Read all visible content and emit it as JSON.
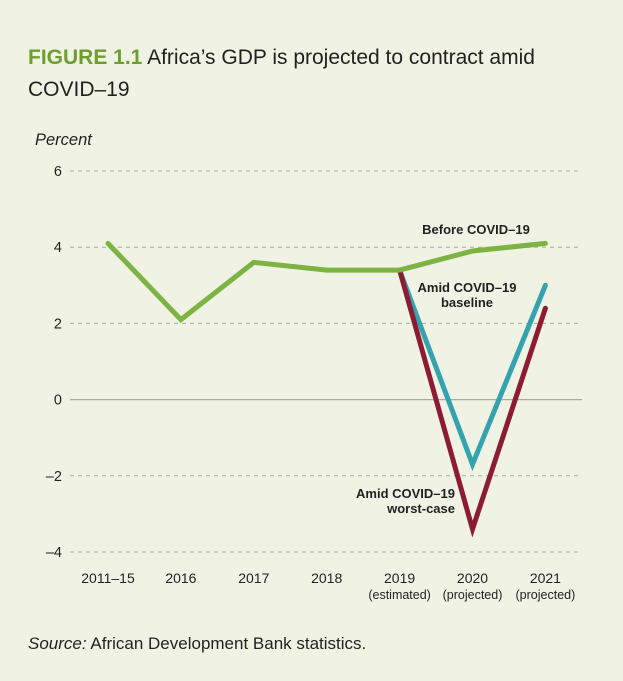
{
  "figure": {
    "label": "FIGURE 1.1",
    "title": "Africa’s GDP is projected to contract amid COVID–19",
    "title_line1": "Africa’s GDP is projected to contract amid",
    "title_line2": "COVID–19"
  },
  "source": {
    "label": "Source:",
    "text": "African Development Bank statistics."
  },
  "chart_data": {
    "type": "line",
    "title": "Africa’s GDP is projected to contract amid COVID–19",
    "xlabel": "",
    "ylabel": "Percent",
    "ylim": [
      -4,
      6
    ],
    "yticks": [
      6,
      4,
      2,
      0,
      -2,
      -4
    ],
    "ytick_labels": [
      "6",
      "4",
      "2",
      "0",
      "–2",
      "–4"
    ],
    "grid": true,
    "categories": [
      "2011–15",
      "2016",
      "2017",
      "2018",
      "2019",
      "2020",
      "2021"
    ],
    "category_sublabels": [
      "",
      "",
      "",
      "",
      "(estimated)",
      "(projected)",
      "(projected)"
    ],
    "series": [
      {
        "name": "Before COVID–19",
        "label_lines": [
          "Before COVID–19"
        ],
        "color": "#7cb342",
        "values": [
          4.1,
          2.1,
          3.6,
          3.4,
          3.4,
          3.9,
          4.1
        ]
      },
      {
        "name": "Amid COVID–19 baseline",
        "label_lines": [
          "Amid COVID–19",
          "baseline"
        ],
        "color": "#35a3ad",
        "values": [
          null,
          null,
          null,
          null,
          3.4,
          -1.7,
          3.0
        ]
      },
      {
        "name": "Amid COVID–19 worst-case",
        "label_lines": [
          "Amid COVID–19",
          "worst-case"
        ],
        "color": "#8b1c31",
        "values": [
          null,
          null,
          null,
          null,
          3.4,
          -3.4,
          2.4
        ]
      }
    ]
  }
}
